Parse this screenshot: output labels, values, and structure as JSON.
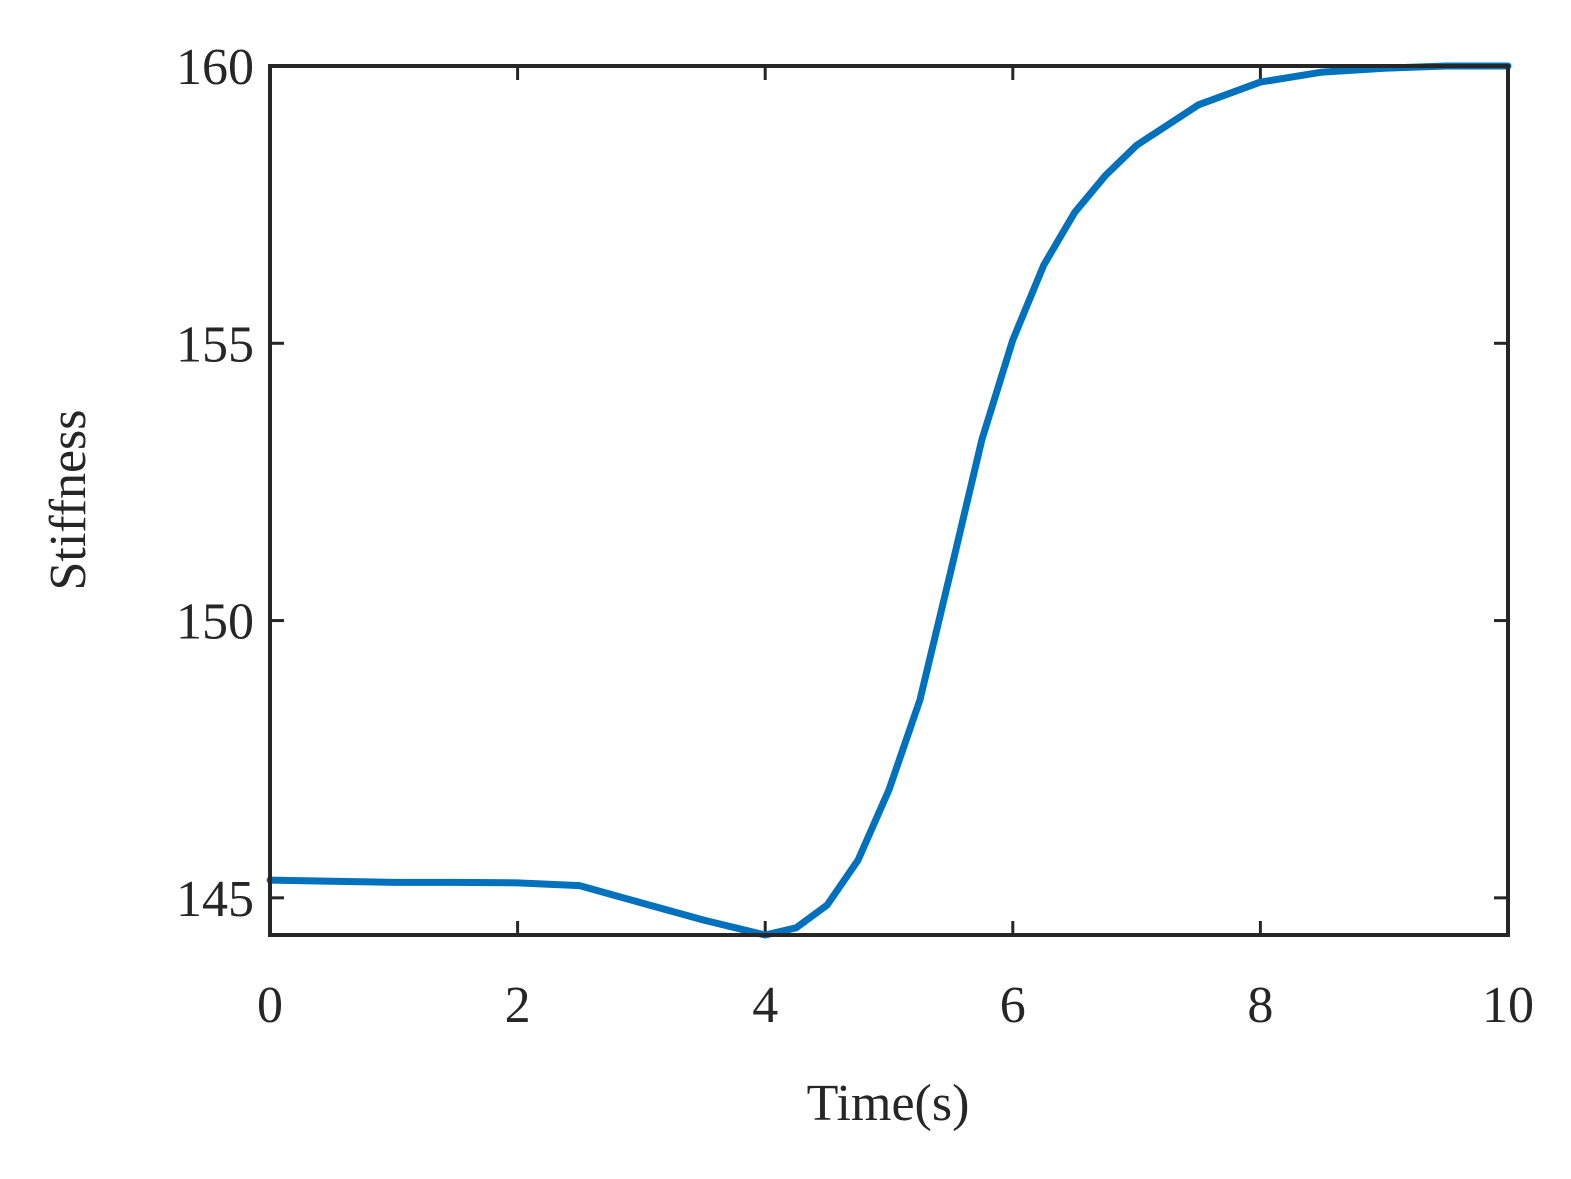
{
  "chart_data": {
    "type": "line",
    "x_label": "Time(s)",
    "y_label": "Stiffness",
    "x": [
      0,
      0.5,
      1,
      1.5,
      2,
      2.5,
      3,
      3.5,
      4,
      4.25,
      4.5,
      4.75,
      5,
      5.25,
      5.5,
      5.75,
      6,
      6.25,
      6.5,
      6.75,
      7,
      7.5,
      8,
      8.5,
      9,
      9.5,
      10
    ],
    "series": [
      {
        "name": "Stiffness",
        "color": "#0072bd",
        "values": [
          145.32,
          145.3,
          145.28,
          145.28,
          145.27,
          145.22,
          144.91,
          144.6,
          144.33,
          144.46,
          144.87,
          145.68,
          146.95,
          148.57,
          150.9,
          153.26,
          155.06,
          156.41,
          157.36,
          158.03,
          158.57,
          159.3,
          159.71,
          159.89,
          159.96,
          160.0,
          160.0
        ]
      }
    ],
    "xlim": [
      0,
      10
    ],
    "xticks": [
      0,
      2,
      4,
      6,
      8,
      10
    ],
    "ylim": [
      144.33,
      160
    ],
    "yticks": [
      145,
      150,
      155,
      160
    ]
  }
}
